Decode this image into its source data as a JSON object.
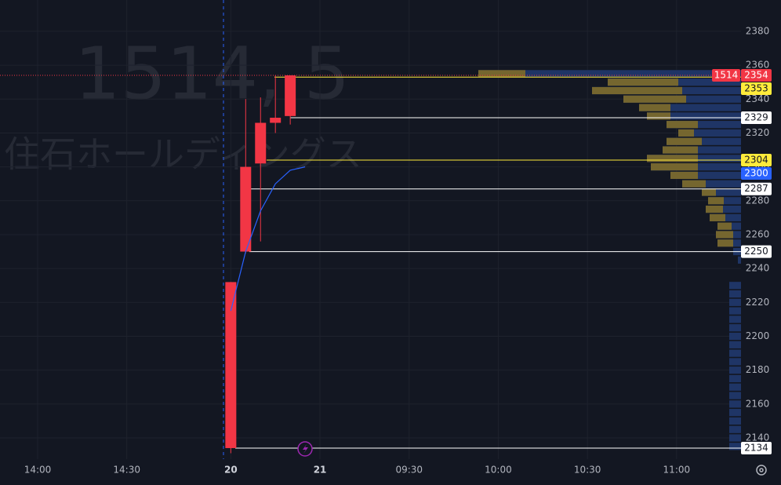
{
  "chart_data": {
    "type": "candlestick",
    "watermark": {
      "symbol": "1514, 5",
      "name": "住石ホールディングス"
    },
    "price_tag": "1514",
    "categories": [
      "14:00",
      null,
      null,
      null,
      null,
      null,
      "14:30",
      null,
      null,
      null,
      null,
      null,
      null,
      "20",
      null,
      null,
      null,
      null,
      null,
      "21",
      null,
      null,
      null,
      null,
      null,
      "09:30",
      null,
      null,
      null,
      null,
      null,
      "10:00",
      null,
      null,
      null,
      null,
      null,
      "10:30",
      null,
      null,
      null,
      null,
      null,
      "11:00",
      null,
      null,
      null,
      null
    ],
    "open": [
      null,
      null,
      null,
      null,
      null,
      null,
      null,
      null,
      null,
      null,
      null,
      null,
      null,
      2134,
      2250,
      2302,
      2326,
      2330,
      null,
      null,
      null,
      null,
      null,
      null,
      null,
      null,
      null,
      null,
      null,
      null,
      null,
      null,
      null,
      null,
      null,
      null,
      null,
      null,
      null,
      null,
      null,
      null,
      null,
      null,
      null,
      null,
      null,
      null
    ],
    "high": [
      null,
      null,
      null,
      null,
      null,
      null,
      null,
      null,
      null,
      null,
      null,
      null,
      null,
      2232,
      2340,
      2341,
      2354,
      2354,
      null,
      null,
      null,
      null,
      null,
      null,
      null,
      null,
      null,
      null,
      null,
      null,
      null,
      null,
      null,
      null,
      null,
      null,
      null,
      null,
      null,
      null,
      null,
      null,
      null,
      null,
      null,
      null,
      null,
      null
    ],
    "low": [
      null,
      null,
      null,
      null,
      null,
      null,
      null,
      null,
      null,
      null,
      null,
      null,
      null,
      2131,
      2249,
      2256,
      2320,
      2325,
      null,
      null,
      null,
      null,
      null,
      null,
      null,
      null,
      null,
      null,
      null,
      null,
      null,
      null,
      null,
      null,
      null,
      null,
      null,
      null,
      null,
      null,
      null,
      null,
      null,
      null,
      null,
      null,
      null,
      null
    ],
    "close": [
      null,
      null,
      null,
      null,
      null,
      null,
      null,
      null,
      null,
      null,
      null,
      null,
      null,
      2232,
      2300,
      2326,
      2329,
      2354,
      null,
      null,
      null,
      null,
      null,
      null,
      null,
      null,
      null,
      null,
      null,
      null,
      null,
      null,
      null,
      null,
      null,
      null,
      null,
      null,
      null,
      null,
      null,
      null,
      null,
      null,
      null,
      null,
      null,
      null
    ],
    "candle_color": "#f23645",
    "average": {
      "color": "#2962ff",
      "values": [
        null,
        null,
        null,
        null,
        null,
        null,
        null,
        null,
        null,
        null,
        null,
        null,
        null,
        2215,
        2250,
        2274,
        2290,
        2298,
        2300,
        null,
        null,
        null,
        null,
        null,
        null,
        null,
        null,
        null,
        null,
        null,
        null,
        null,
        null,
        null,
        null,
        null,
        null,
        null,
        null,
        null,
        null,
        null,
        null,
        null,
        null,
        null,
        null,
        null
      ]
    },
    "ylim": [
      2127.5,
      2398.5
    ],
    "yticks": [
      2140,
      2160,
      2180,
      2200,
      2220,
      2240,
      2260,
      2280,
      2300,
      2320,
      2340,
      2360,
      2380
    ],
    "grid": true,
    "levels": [
      {
        "price": 2354,
        "color": "#f23645",
        "line": false
      },
      {
        "price": 2353,
        "color": "#ffeb3b",
        "line": true
      },
      {
        "price": 2329,
        "color": "#ffffff",
        "line": true
      },
      {
        "price": 2304,
        "color": "#ffeb3b",
        "line": true
      },
      {
        "price": 2300,
        "color": "#2962ff",
        "line": false
      },
      {
        "price": 2287,
        "color": "#ffffff",
        "line": true
      },
      {
        "price": 2250,
        "color": "#ffffff",
        "line": true
      },
      {
        "price": 2134,
        "color": "#ffffff",
        "line": true
      }
    ],
    "volume_profile": {
      "total_color": "#1f3566",
      "part_color": "#75662f",
      "price": [
        2135,
        2140,
        2145,
        2150,
        2155,
        2160,
        2165,
        2170,
        2175,
        2180,
        2185,
        2190,
        2195,
        2200,
        2205,
        2210,
        2215,
        2220,
        2225,
        2230,
        2235,
        2240,
        2245,
        2250,
        2255,
        2260,
        2265,
        2270,
        2275,
        2280,
        2285,
        2290,
        2295,
        2300,
        2305,
        2310,
        2315,
        2320,
        2325,
        2330,
        2335,
        2340,
        2345,
        2350,
        2355
      ],
      "total": [
        15,
        15,
        15,
        15,
        15,
        15,
        15,
        15,
        15,
        15,
        15,
        15,
        15,
        15,
        15,
        15,
        15,
        15,
        15,
        15,
        0,
        0,
        4,
        10,
        30,
        32,
        30,
        40,
        45,
        42,
        50,
        75,
        90,
        115,
        120,
        100,
        95,
        80,
        95,
        120,
        130,
        150,
        190,
        170,
        335
      ],
      "part": [
        0,
        0,
        0,
        0,
        0,
        0,
        0,
        0,
        0,
        0,
        0,
        0,
        0,
        0,
        0,
        0,
        0,
        0,
        0,
        0,
        0,
        0,
        0,
        0,
        20,
        22,
        18,
        20,
        22,
        20,
        18,
        30,
        35,
        60,
        65,
        45,
        45,
        20,
        40,
        30,
        40,
        80,
        115,
        90,
        60
      ]
    }
  }
}
